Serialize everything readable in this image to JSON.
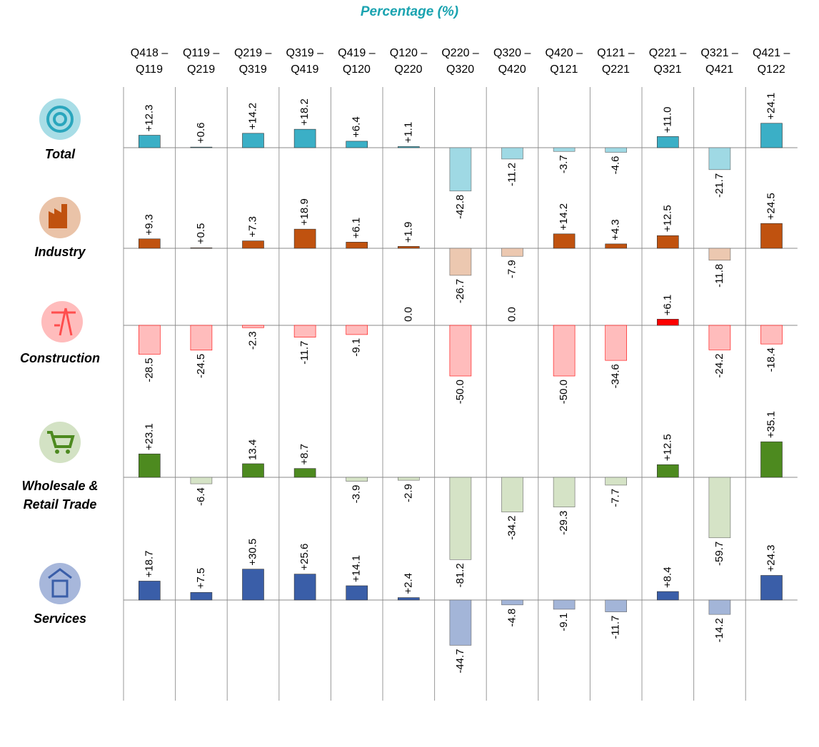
{
  "chart_data": {
    "type": "bar",
    "title": "Percentage (%)",
    "categories": [
      "Q418 –\nQ119",
      "Q119 –\nQ219",
      "Q219 –\nQ319",
      "Q319 –\nQ419",
      "Q419 –\nQ120",
      "Q120 –\nQ220",
      "Q220 –\nQ320",
      "Q320 –\nQ420",
      "Q420 –\nQ121",
      "Q121 –\nQ221",
      "Q221 –\nQ321",
      "Q321 –\nQ421",
      "Q421 –\nQ122"
    ],
    "series": [
      {
        "name": "Total",
        "color": "#3bafc6",
        "negative_color": "#9fd9e4",
        "values": [
          12.3,
          0.6,
          14.2,
          18.2,
          6.4,
          1.1,
          -42.8,
          -11.2,
          -3.7,
          -4.6,
          11.0,
          -21.7,
          24.1
        ],
        "value_labels": [
          "+12.3",
          "+0.6",
          "+14.2",
          "+18.2",
          "+6.4",
          "+1.1",
          "-42.8",
          "-11.2",
          "-3.7",
          "-4.6",
          "+11.0",
          "-21.7",
          "+24.1"
        ]
      },
      {
        "name": "Industry",
        "color": "#c0520f",
        "negative_color": "#ecc8b0",
        "values": [
          9.3,
          0.5,
          7.3,
          18.9,
          6.1,
          1.9,
          -26.7,
          -7.9,
          14.2,
          4.3,
          12.5,
          -11.8,
          24.5
        ],
        "value_labels": [
          "+9.3",
          "+0.5",
          "+7.3",
          "+18.9",
          "+6.1",
          "+1.9",
          "-26.7",
          "-7.9",
          "+14.2",
          "+4.3",
          "+12.5",
          "-11.8",
          "+24.5"
        ]
      },
      {
        "name": "Construction",
        "color": "#ff0000",
        "negative_color": "#ffbcbc",
        "values": [
          -28.5,
          -24.5,
          -2.3,
          -11.7,
          -9.1,
          0.0,
          -50.0,
          0.0,
          -50.0,
          -34.6,
          6.1,
          -24.2,
          -18.4
        ],
        "value_labels": [
          "-28.5",
          "-24.5",
          "-2.3",
          "-11.7",
          "-9.1",
          "0.0",
          "-50.0",
          "0.0",
          "-50.0",
          "-34.6",
          "+6.1",
          "-24.2",
          "-18.4"
        ]
      },
      {
        "name": "Wholesale &\nRetail Trade",
        "color": "#4d8a1f",
        "negative_color": "#d5e3c6",
        "values": [
          23.1,
          -6.4,
          13.4,
          8.7,
          -3.9,
          -2.9,
          -81.2,
          -34.2,
          -29.3,
          -7.7,
          12.5,
          -59.7,
          35.1
        ],
        "value_labels": [
          "+23.1",
          "-6.4",
          "13.4",
          "+8.7",
          "-3.9",
          "-2.9",
          "-81.2",
          "-34.2",
          "-29.3",
          "-7.7",
          "+12.5",
          "-59.7",
          "+35.1"
        ]
      },
      {
        "name": "Services",
        "color": "#3a5ea8",
        "negative_color": "#a3b5d8",
        "values": [
          18.7,
          7.5,
          30.5,
          25.6,
          14.1,
          2.4,
          -44.7,
          -4.8,
          -9.1,
          -11.7,
          8.4,
          -14.2,
          24.3
        ],
        "value_labels": [
          "+18.7",
          "+7.5",
          "+30.5",
          "+25.6",
          "+14.1",
          "+2.4",
          "-44.7",
          "-4.8",
          "-9.1",
          "-11.7",
          "+8.4",
          "-14.2",
          "+24.3"
        ]
      }
    ]
  }
}
